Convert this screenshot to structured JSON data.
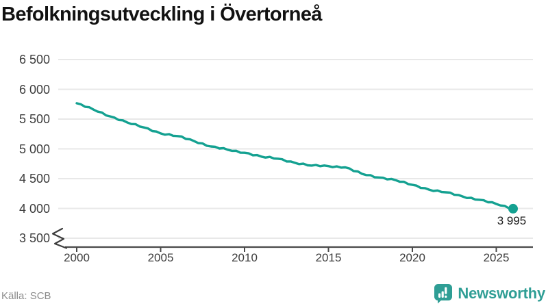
{
  "title": "Befolkningsutveckling i Övertorneå",
  "source": "Källa: SCB",
  "brand": {
    "name": "Newsworthy"
  },
  "colors": {
    "line": "#14a191",
    "grid": "#e8e8e8",
    "axis": "#4a4a4a",
    "tick_text": "#3d3d3d",
    "brand_teal": "#2f9e95"
  },
  "chart_data": {
    "type": "line",
    "title": "Befolkningsutveckling i Övertorneå",
    "x": [
      2000,
      2001,
      2002,
      2003,
      2004,
      2005,
      2006,
      2007,
      2008,
      2009,
      2010,
      2011,
      2012,
      2013,
      2014,
      2015,
      2016,
      2017,
      2018,
      2019,
      2020,
      2021,
      2022,
      2023,
      2024,
      2025,
      2026
    ],
    "values": [
      5765,
      5660,
      5545,
      5445,
      5360,
      5260,
      5215,
      5130,
      5040,
      4985,
      4935,
      4870,
      4835,
      4765,
      4720,
      4710,
      4690,
      4580,
      4520,
      4475,
      4395,
      4315,
      4270,
      4200,
      4145,
      4075,
      3995
    ],
    "series_name": "Befolkning",
    "xlabel": "",
    "ylabel": "",
    "ylim": [
      3500,
      6500
    ],
    "xlim": [
      2000,
      2026
    ],
    "grid": "horizontal",
    "legend_position": "none",
    "axis_break_at_bottom": true,
    "y_ticks": [
      {
        "value": 6500,
        "label": "6 500"
      },
      {
        "value": 6000,
        "label": "6 000"
      },
      {
        "value": 5500,
        "label": "5 500"
      },
      {
        "value": 5000,
        "label": "5 000"
      },
      {
        "value": 4500,
        "label": "4 500"
      },
      {
        "value": 4000,
        "label": "4 000"
      },
      {
        "value": 3500,
        "label": "3 500"
      }
    ],
    "x_ticks": [
      {
        "value": 2000,
        "label": "2000"
      },
      {
        "value": 2005,
        "label": "2005"
      },
      {
        "value": 2010,
        "label": "2010"
      },
      {
        "value": 2015,
        "label": "2015"
      },
      {
        "value": 2020,
        "label": "2020"
      },
      {
        "value": 2025,
        "label": "2025"
      }
    ],
    "last_point": {
      "x": 2026,
      "value": 3995,
      "label": "3 995"
    }
  }
}
